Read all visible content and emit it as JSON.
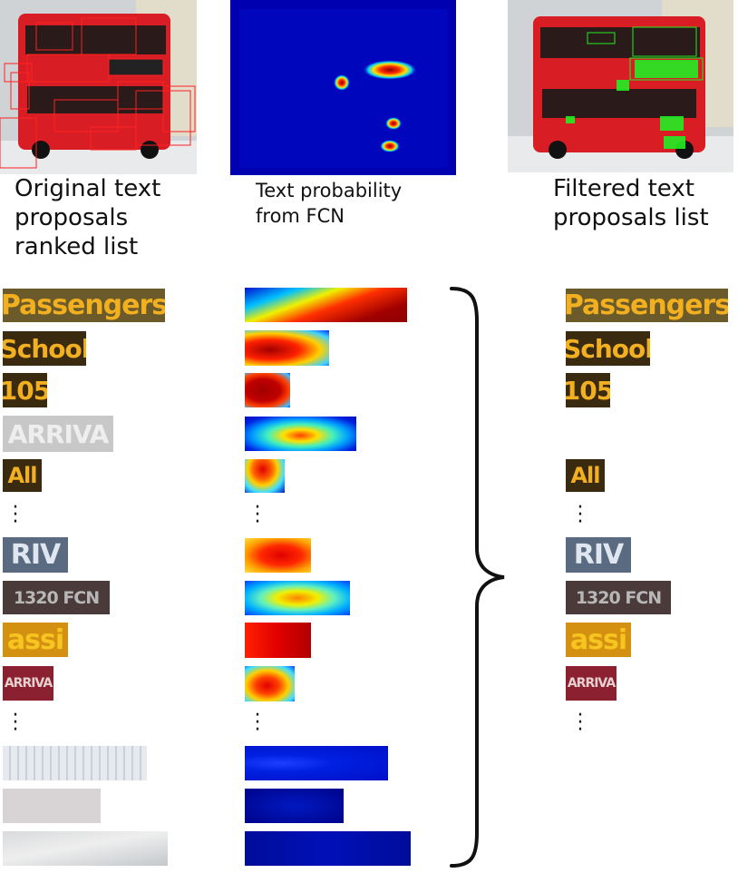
{
  "captions": {
    "original": [
      "Original text",
      "proposals",
      "ranked list"
    ],
    "probability": [
      "Text probability",
      "from FCN"
    ],
    "filtered": [
      "Filtered text",
      "proposals list"
    ]
  },
  "colors": {
    "bus_red": "#d81e24",
    "sign_yellow": "#f2b020",
    "sign_dark": "#3a2a10",
    "heat_dark_blue": "#00008b",
    "heat_red": "#b00000",
    "proposal_box": "#ff2020",
    "filtered_box": "#22ee22"
  },
  "icons": {
    "brace": "right-curly-brace-icon",
    "ellipsis": "vertical-ellipsis-icon"
  },
  "proposals": [
    {
      "text": "Passengers",
      "kept": true
    },
    {
      "text": "School",
      "kept": true
    },
    {
      "text": "105",
      "kept": true
    },
    {
      "text": "ARRIVA",
      "kept": false
    },
    {
      "text": "All",
      "kept": true
    },
    {
      "text": "RIV",
      "kept": true
    },
    {
      "text": "1320 FCN",
      "kept": true
    },
    {
      "text": "assi",
      "kept": true
    },
    {
      "text": "ARRIVA",
      "kept": true
    },
    {
      "text": "",
      "kept": false
    },
    {
      "text": "",
      "kept": false
    },
    {
      "text": "",
      "kept": false
    }
  ]
}
